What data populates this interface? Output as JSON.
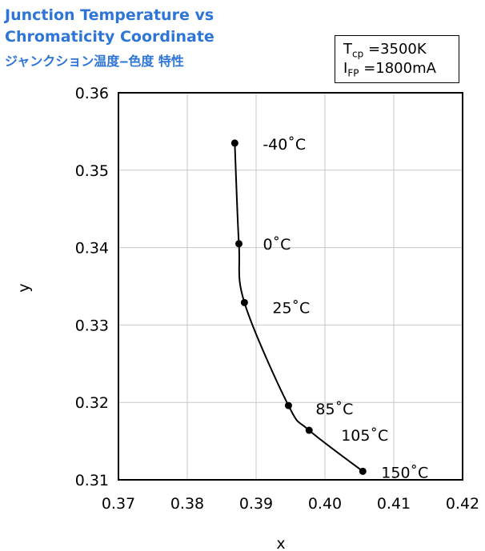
{
  "header": {
    "title_line1": "Junction Temperature vs",
    "title_line2": "Chromaticity Coordinate",
    "title_line3": "ジャンクション温度‒色度 特性"
  },
  "legend": {
    "tcp_label": "T",
    "tcp_sub": "cp",
    "tcp_value": "=3500K",
    "ifp_label": "I",
    "ifp_sub": "FP",
    "ifp_value": "=1800mA"
  },
  "chart_data": {
    "type": "line",
    "title": "Junction Temperature vs Chromaticity Coordinate",
    "xlabel": "x",
    "ylabel": "y",
    "xlim": [
      0.37,
      0.42
    ],
    "ylim": [
      0.31,
      0.36
    ],
    "x_ticks": [
      "0.37",
      "0.38",
      "0.39",
      "0.40",
      "0.41",
      "0.42"
    ],
    "y_ticks": [
      "0.31",
      "0.32",
      "0.33",
      "0.34",
      "0.35",
      "0.36"
    ],
    "grid": true,
    "series": [
      {
        "color": "#000000",
        "points": [
          {
            "x": 0.3869,
            "y": 0.3535,
            "label": "-40˚C"
          },
          {
            "x": 0.3875,
            "y": 0.3405,
            "label": "0˚C"
          },
          {
            "x": 0.3883,
            "y": 0.3329,
            "label": "25˚C"
          },
          {
            "x": 0.3947,
            "y": 0.3196,
            "label": "85˚C"
          },
          {
            "x": 0.3977,
            "y": 0.3164,
            "label": "105˚C"
          },
          {
            "x": 0.4055,
            "y": 0.3111,
            "label": "150˚C"
          }
        ]
      }
    ]
  }
}
